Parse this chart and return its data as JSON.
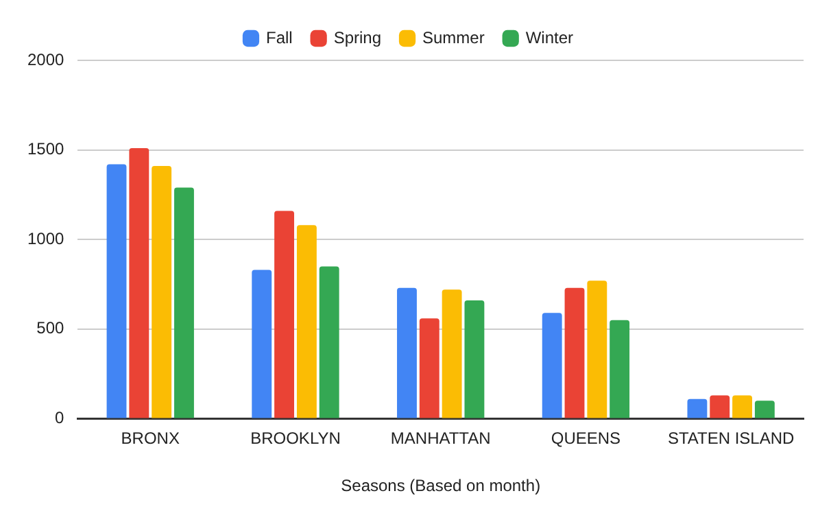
{
  "chart_data": {
    "type": "bar",
    "xlabel": "Seasons (Based on month)",
    "categories": [
      "BRONX",
      "BROOKLYN",
      "MANHATTAN",
      "QUEENS",
      "STATEN ISLAND"
    ],
    "series": [
      {
        "name": "Fall",
        "color": "#4285f4",
        "values": [
          1420,
          830,
          730,
          590,
          110
        ]
      },
      {
        "name": "Spring",
        "color": "#ea4335",
        "values": [
          1510,
          1160,
          560,
          730,
          130
        ]
      },
      {
        "name": "Summer",
        "color": "#fbbc04",
        "values": [
          1410,
          1080,
          720,
          770,
          130
        ]
      },
      {
        "name": "Winter",
        "color": "#34a853",
        "values": [
          1290,
          850,
          660,
          550,
          100
        ]
      }
    ],
    "ylim": [
      0,
      2000
    ],
    "yticks": [
      0,
      500,
      1000,
      1500,
      2000
    ],
    "grid": "y",
    "legend": "top"
  }
}
